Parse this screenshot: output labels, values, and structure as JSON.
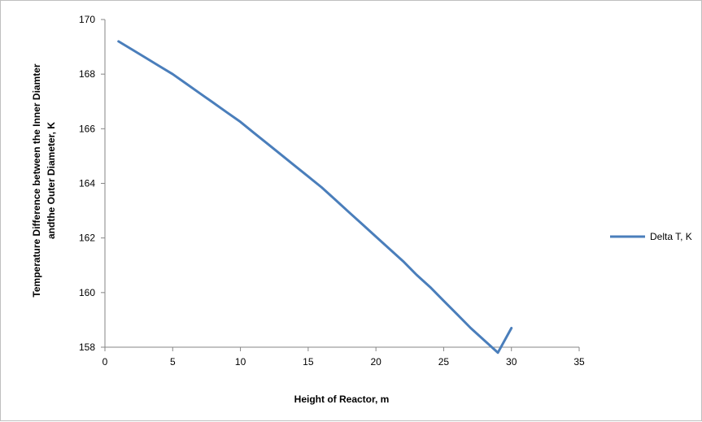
{
  "chart_data": {
    "type": "line",
    "title": "",
    "xlabel": "Height of Reactor, m",
    "ylabel_lines": [
      "Temperature Difference between the Inner Diamter",
      "andthe Outer Diameter, K"
    ],
    "xlim": [
      0,
      35
    ],
    "ylim": [
      158,
      170
    ],
    "x_ticks": [
      "0",
      "5",
      "10",
      "15",
      "20",
      "25",
      "30",
      "35"
    ],
    "y_ticks": [
      "158",
      "160",
      "162",
      "164",
      "166",
      "168",
      "170"
    ],
    "grid": false,
    "legend": "right",
    "series": [
      {
        "name": "Delta T, K",
        "color": "#4a7ebb",
        "x": [
          1,
          2,
          3,
          4,
          5,
          6,
          7,
          8,
          9,
          10,
          11,
          12,
          13,
          14,
          15,
          16,
          17,
          18,
          19,
          20,
          21,
          22,
          23,
          24,
          25,
          26,
          27,
          28,
          29,
          30
        ],
        "y": [
          169.2,
          168.9,
          168.6,
          168.3,
          168.0,
          167.65,
          167.3,
          166.95,
          166.6,
          166.25,
          165.85,
          165.45,
          165.05,
          164.65,
          164.25,
          163.85,
          163.4,
          162.95,
          162.5,
          162.05,
          161.6,
          161.15,
          160.65,
          160.2,
          159.7,
          159.2,
          158.7,
          158.25,
          157.8,
          158.7
        ]
      }
    ]
  }
}
